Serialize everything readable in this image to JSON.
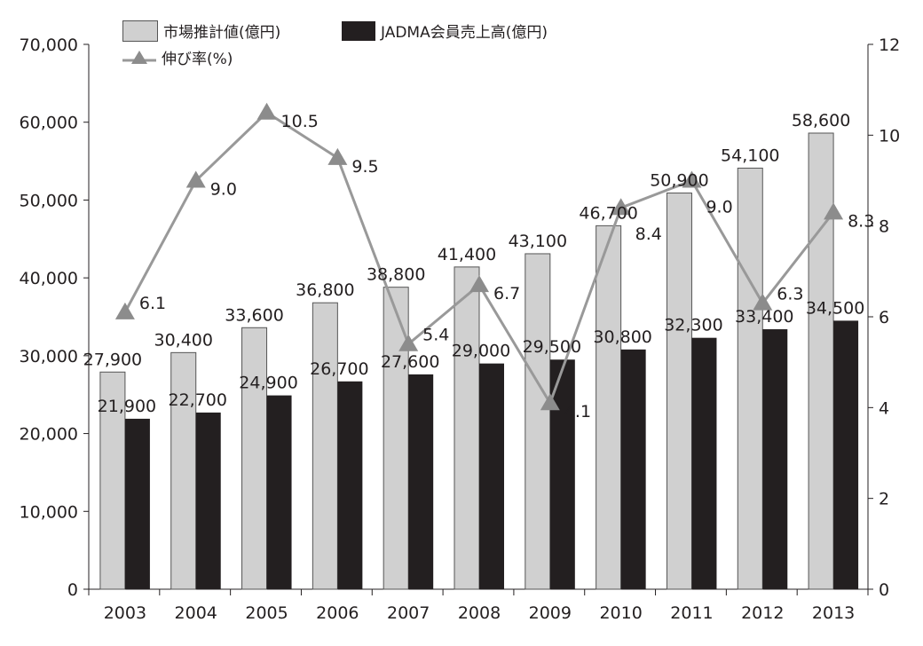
{
  "chart_data": {
    "type": "bar+line",
    "categories": [
      "2003",
      "2004",
      "2005",
      "2006",
      "2007",
      "2008",
      "2009",
      "2010",
      "2011",
      "2012",
      "2013"
    ],
    "series": [
      {
        "name": "市場推計値(億円)",
        "type": "bar",
        "axis": "left",
        "color": "#d0d0d0",
        "values": [
          27900,
          30400,
          33600,
          36800,
          38800,
          41400,
          43100,
          46700,
          50900,
          54100,
          58600
        ],
        "labels": [
          "27,900",
          "30,400",
          "33,600",
          "36,800",
          "38,800",
          "41,400",
          "43,100",
          "46,700",
          "50,900",
          "54,100",
          "58,600"
        ]
      },
      {
        "name": "JADMA会員売上高(億円)",
        "type": "bar",
        "axis": "left",
        "color": "#231f20",
        "values": [
          21900,
          22700,
          24900,
          26700,
          27600,
          29000,
          29500,
          30800,
          32300,
          33400,
          34500
        ],
        "labels": [
          "21,900",
          "22,700",
          "24,900",
          "26,700",
          "27,600",
          "29,000",
          "29,500",
          "30,800",
          "32,300",
          "33,400",
          "34,500"
        ]
      },
      {
        "name": "伸び率(%)",
        "type": "line",
        "axis": "right",
        "color": "#999999",
        "values": [
          6.1,
          9.0,
          10.5,
          9.5,
          5.4,
          6.7,
          4.1,
          8.4,
          9.0,
          6.3,
          8.3
        ],
        "labels": [
          "6.1",
          "9.0",
          "10.5",
          "9.5",
          "5.4",
          "6.7",
          "4.1",
          "8.4",
          "9.0",
          "6.3",
          "8.3"
        ]
      }
    ],
    "y_left": {
      "range": [
        0,
        70000
      ],
      "ticks": [
        "0",
        "10,000",
        "20,000",
        "30,000",
        "40,000",
        "50,000",
        "60,000",
        "70,000"
      ]
    },
    "y_right": {
      "range": [
        0,
        12
      ],
      "ticks": [
        "0",
        "2",
        "4",
        "6",
        "8",
        "10",
        "12"
      ]
    },
    "legend_position": "top-left",
    "grid": false
  }
}
